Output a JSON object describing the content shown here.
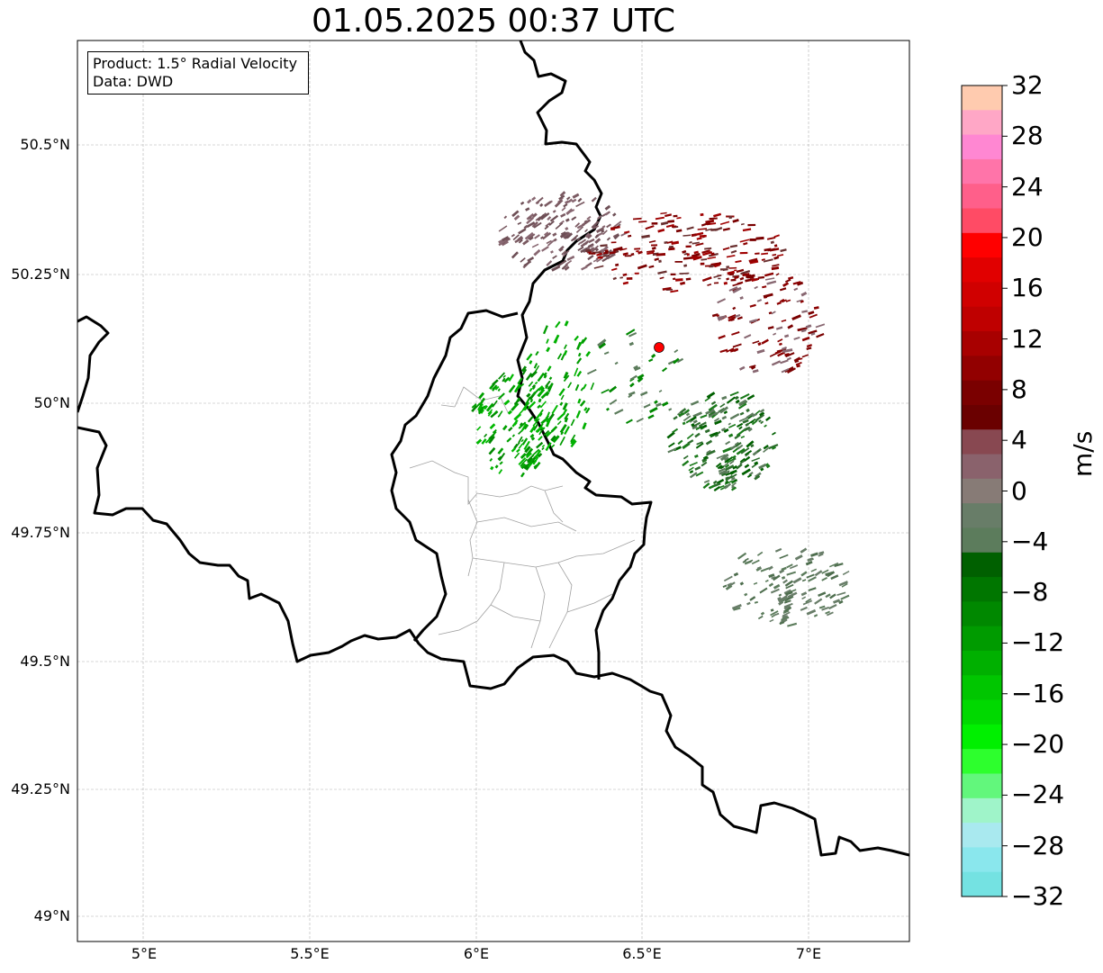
{
  "title": "01.05.2025 00:37 UTC",
  "infobox": {
    "product": "Product: 1.5° Radial Velocity",
    "source": "Data: DWD"
  },
  "axes": {
    "lon_ticks": [
      "5°E",
      "5.5°E",
      "6°E",
      "6.5°E",
      "7°E"
    ],
    "lat_ticks": [
      "50.5°N",
      "50.25°N",
      "50°N",
      "49.75°N",
      "49.5°N",
      "49.25°N",
      "49°N"
    ],
    "lon_range": [
      4.8,
      7.3
    ],
    "lat_range": [
      48.95,
      50.7
    ],
    "grid": true
  },
  "radar_site": {
    "lon": 6.55,
    "lat": 50.11,
    "color": "#ff0000"
  },
  "colorbar": {
    "label": "m/s",
    "range": [
      -32,
      32
    ],
    "ticks": [
      "32",
      "28",
      "24",
      "20",
      "16",
      "12",
      "8",
      "4",
      "0",
      "−4",
      "−8",
      "−12",
      "−16",
      "−20",
      "−24",
      "−28",
      "−32"
    ],
    "colors_top_to_bottom": [
      "#ffcbaf",
      "#ffa7c6",
      "#ff87d2",
      "#ff74a9",
      "#ff5f8a",
      "#ff4b65",
      "#ff0000",
      "#e10000",
      "#d00000",
      "#bf0000",
      "#a80000",
      "#920000",
      "#7a0000",
      "#6a0000",
      "#884851",
      "#8a626c",
      "#877b76",
      "#687d68",
      "#5c7c5c",
      "#006000",
      "#007600",
      "#008800",
      "#009b00",
      "#00b000",
      "#00c600",
      "#00d900",
      "#00f000",
      "#2dff2d",
      "#62f77c",
      "#9ff4c9",
      "#a9e9ef",
      "#8ae7ed",
      "#74e2e2"
    ]
  },
  "legend_hint": "colorbar-right"
}
